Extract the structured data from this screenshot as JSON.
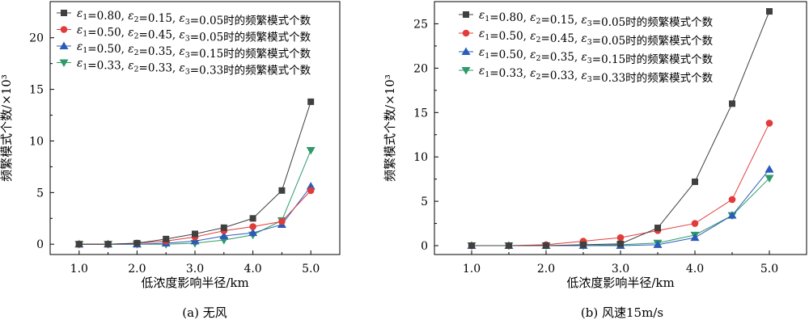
{
  "chart_data": [
    {
      "type": "line",
      "caption": "(a) 无风",
      "xlabel": "低浓度影响半径/km",
      "ylabel": "频繁模式个数/×10³",
      "x": [
        1.0,
        1.5,
        2.0,
        2.5,
        3.0,
        3.5,
        4.0,
        4.5,
        5.0
      ],
      "xticks": [
        "1.0",
        "2.0",
        "3.0",
        "4.0",
        "5.0"
      ],
      "xlim": [
        0.5,
        5.5
      ],
      "ylim": [
        -1,
        23.5
      ],
      "yticks": [
        0,
        5,
        10,
        15,
        20
      ],
      "legend_position": "top-left",
      "series": [
        {
          "name": "ε1=0.80, ε2=0.15, ε3=0.05时的频繁模式个数",
          "color": "#404040",
          "marker": "square",
          "values": [
            0,
            0,
            0.1,
            0.5,
            1.0,
            1.6,
            2.5,
            5.2,
            13.8
          ]
        },
        {
          "name": "ε1=0.50, ε2=0.45, ε3=0.05时的频繁模式个数",
          "color": "#e23b3b",
          "marker": "circle",
          "values": [
            0,
            0,
            0.1,
            0.3,
            0.7,
            1.3,
            1.7,
            2.2,
            5.2
          ]
        },
        {
          "name": "ε1=0.50, ε2=0.35, ε3=0.15时的频繁模式个数",
          "color": "#2a5cb8",
          "marker": "triangle-up",
          "values": [
            0,
            0,
            0,
            0.1,
            0.3,
            0.8,
            1.1,
            1.9,
            5.6
          ]
        },
        {
          "name": "ε1=0.33, ε2=0.33, ε3=0.33时的频繁模式个数",
          "color": "#2e9a6a",
          "marker": "triangle-down",
          "values": [
            0,
            0,
            0,
            0,
            0.1,
            0.4,
            0.9,
            2.3,
            9.1
          ]
        }
      ]
    },
    {
      "type": "line",
      "caption": "(b) 风速15m/s",
      "xlabel": "低浓度影响半径/km",
      "ylabel": "频繁模式个数/×10³",
      "x": [
        1.0,
        1.5,
        2.0,
        2.5,
        3.0,
        3.5,
        4.0,
        4.5,
        5.0
      ],
      "xticks": [
        "1.0",
        "2.0",
        "3.0",
        "4.0",
        "5.0"
      ],
      "xlim": [
        0.5,
        5.5
      ],
      "ylim": [
        -1,
        27.5
      ],
      "yticks": [
        0,
        5,
        10,
        15,
        20,
        25
      ],
      "legend_position": "top-left",
      "series": [
        {
          "name": "ε1=0.80, ε2=0.15, ε3=0.05时的频繁模式个数",
          "color": "#404040",
          "marker": "square",
          "values": [
            0,
            0,
            0,
            0.1,
            0.2,
            2.0,
            7.2,
            16.0,
            26.4
          ]
        },
        {
          "name": "ε1=0.50, ε2=0.45, ε3=0.05时的频繁模式个数",
          "color": "#e23b3b",
          "marker": "circle",
          "values": [
            0,
            0,
            0.1,
            0.5,
            0.9,
            1.7,
            2.5,
            5.2,
            13.8
          ]
        },
        {
          "name": "ε1=0.50, ε2=0.35, ε3=0.15时的频繁模式个数",
          "color": "#2a5cb8",
          "marker": "triangle-up",
          "values": [
            0,
            0,
            0,
            0,
            0,
            0.1,
            0.9,
            3.4,
            8.6
          ]
        },
        {
          "name": "ε1=0.33, ε2=0.33, ε3=0.33时的频繁模式个数",
          "color": "#2e9a6a",
          "marker": "triangle-down",
          "values": [
            0,
            0,
            0,
            0,
            0.1,
            0.3,
            1.2,
            3.4,
            7.6
          ]
        }
      ]
    }
  ]
}
